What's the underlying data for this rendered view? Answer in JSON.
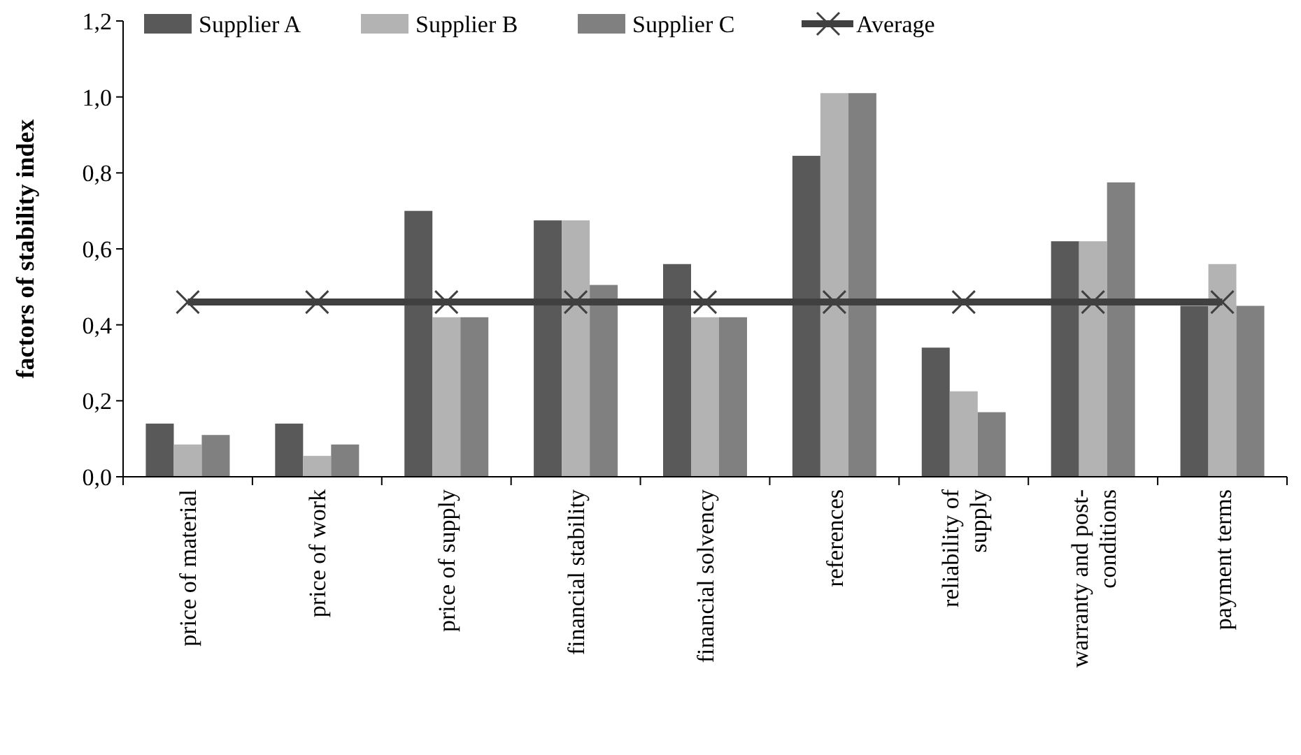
{
  "chart_data": {
    "type": "bar",
    "ylabel": "factors of stability index",
    "categories": [
      "price of material",
      "price of work",
      "price of supply",
      "financial stability",
      "financial solvency",
      "references",
      "reliability of supply",
      "warranty and post-conditions",
      "payment terms"
    ],
    "series": [
      {
        "name": "Supplier A",
        "color": "#595959",
        "values": [
          0.14,
          0.14,
          0.7,
          0.675,
          0.56,
          0.845,
          0.34,
          0.62,
          0.45
        ]
      },
      {
        "name": "Supplier B",
        "color": "#b3b3b3",
        "values": [
          0.085,
          0.055,
          0.42,
          0.675,
          0.42,
          1.01,
          0.225,
          0.62,
          0.56
        ]
      },
      {
        "name": "Supplier C",
        "color": "#808080",
        "values": [
          0.11,
          0.085,
          0.42,
          0.505,
          0.42,
          1.01,
          0.17,
          0.775,
          0.45
        ]
      },
      {
        "name": "Average",
        "type": "line",
        "color": "#404040",
        "marker": "cross",
        "values": [
          0.46,
          0.46,
          0.46,
          0.46,
          0.46,
          0.46,
          0.46,
          0.46,
          0.46
        ]
      }
    ],
    "ylim": [
      0,
      1.2
    ],
    "yticks": [
      {
        "value": 0,
        "label": "0,0"
      },
      {
        "value": 0.2,
        "label": "0,2"
      },
      {
        "value": 0.4,
        "label": "0,4"
      },
      {
        "value": 0.6,
        "label": "0,6"
      },
      {
        "value": 0.8,
        "label": "0,8"
      },
      {
        "value": 1,
        "label": "1,0"
      },
      {
        "value": 1.2,
        "label": "1,2"
      }
    ],
    "grid": false,
    "legend": "top"
  }
}
